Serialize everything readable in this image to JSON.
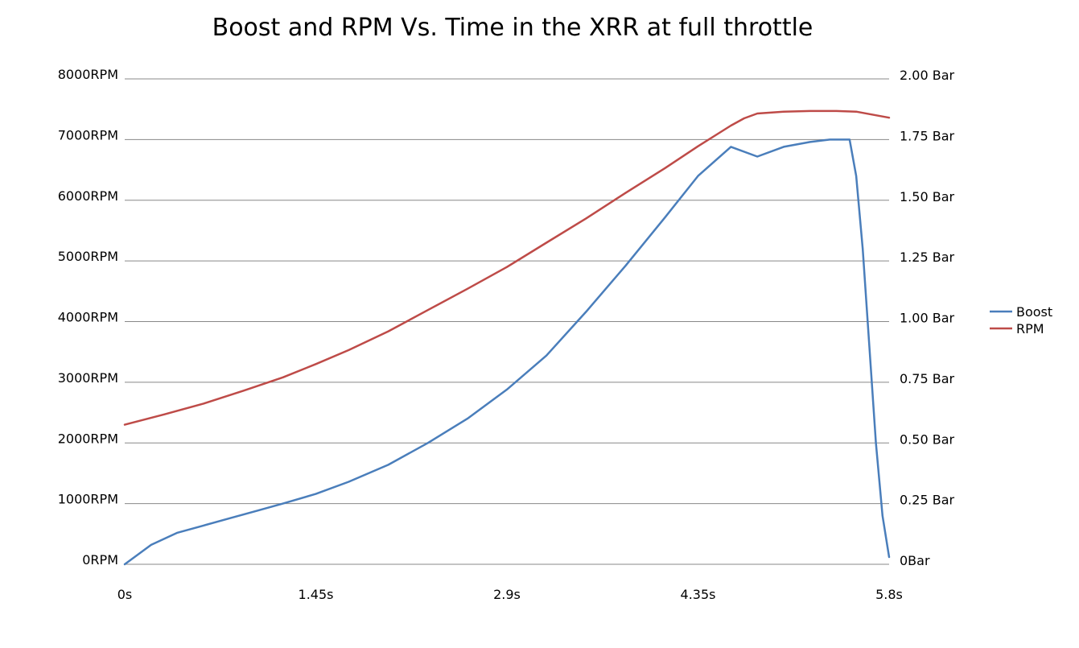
{
  "chart_data": {
    "type": "line",
    "title": "Boost and RPM Vs. Time in the XRR at full throttle",
    "xlabel": "",
    "ylabel": "",
    "y2label": "",
    "xlim": [
      0,
      5.8
    ],
    "ylim": [
      0,
      8000
    ],
    "y2lim": [
      0,
      2.0
    ],
    "x_ticks": [
      0,
      1.45,
      2.9,
      4.35,
      5.8
    ],
    "x_tick_labels": [
      "0s",
      "1.45s",
      "2.9s",
      "4.35s",
      "5.8s"
    ],
    "y_ticks": [
      0,
      1000,
      2000,
      3000,
      4000,
      5000,
      6000,
      7000,
      8000
    ],
    "y_tick_labels": [
      "0RPM",
      "1000RPM",
      "2000RPM",
      "3000RPM",
      "4000RPM",
      "5000RPM",
      "6000RPM",
      "7000RPM",
      "8000RPM"
    ],
    "y2_ticks": [
      0,
      0.25,
      0.5,
      0.75,
      1.0,
      1.25,
      1.5,
      1.75,
      2.0
    ],
    "y2_tick_labels": [
      "0Bar",
      "0.25 Bar",
      "0.50 Bar",
      "0.75 Bar",
      "1.00 Bar",
      "1.25 Bar",
      "1.50 Bar",
      "1.75 Bar",
      "2.00 Bar"
    ],
    "grid": true,
    "legend_position": "right",
    "series": [
      {
        "name": "Boost",
        "axis": "right",
        "color": "#4a7ebb",
        "x": [
          0,
          0.2,
          0.4,
          0.6,
          0.8,
          1.0,
          1.2,
          1.45,
          1.7,
          2.0,
          2.3,
          2.6,
          2.9,
          3.2,
          3.5,
          3.8,
          4.1,
          4.35,
          4.6,
          4.8,
          5.0,
          5.2,
          5.35,
          5.45,
          5.5,
          5.55,
          5.6,
          5.65,
          5.7,
          5.75,
          5.8
        ],
        "y": [
          0,
          0.08,
          0.13,
          0.16,
          0.19,
          0.22,
          0.25,
          0.29,
          0.34,
          0.41,
          0.5,
          0.6,
          0.72,
          0.86,
          1.04,
          1.23,
          1.43,
          1.6,
          1.72,
          1.68,
          1.72,
          1.74,
          1.75,
          1.75,
          1.75,
          1.6,
          1.3,
          0.9,
          0.5,
          0.2,
          0.03
        ]
      },
      {
        "name": "RPM",
        "axis": "left",
        "color": "#be4b48",
        "x": [
          0,
          0.3,
          0.6,
          0.9,
          1.2,
          1.45,
          1.7,
          2.0,
          2.3,
          2.6,
          2.9,
          3.2,
          3.5,
          3.8,
          4.1,
          4.35,
          4.6,
          4.7,
          4.8,
          5.0,
          5.2,
          5.4,
          5.55,
          5.65,
          5.8
        ],
        "y": [
          2300,
          2470,
          2650,
          2860,
          3080,
          3300,
          3530,
          3840,
          4190,
          4540,
          4900,
          5300,
          5700,
          6120,
          6530,
          6890,
          7230,
          7350,
          7430,
          7460,
          7470,
          7470,
          7460,
          7420,
          7360
        ]
      }
    ]
  }
}
